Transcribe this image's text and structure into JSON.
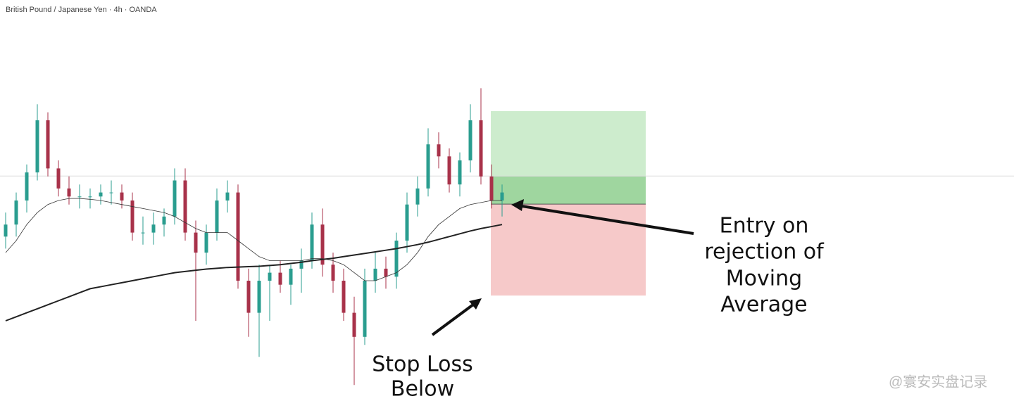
{
  "chart_data": {
    "type": "candlestick",
    "title": "British Pound / Japanese Yen · 4h · OANDA",
    "ylim": [
      0,
      100
    ],
    "up_color": "#2a9d8f",
    "down_color": "#a8324a",
    "open": [
      41,
      44,
      50,
      57,
      70,
      58,
      53,
      51,
      51,
      51,
      52,
      52,
      50,
      42,
      42,
      44,
      46,
      55,
      42,
      37,
      42,
      50,
      52,
      30,
      22,
      30,
      32,
      29,
      33,
      35,
      44,
      34,
      30,
      22,
      16,
      30,
      33,
      31,
      40,
      49,
      53,
      64,
      61,
      54,
      60,
      70,
      56,
      50
    ],
    "high": [
      47,
      52,
      59,
      74,
      72,
      60,
      56,
      54,
      53,
      54,
      55,
      54,
      52,
      46,
      47,
      48,
      58,
      58,
      45,
      44,
      53,
      55,
      54,
      33,
      34,
      34,
      35,
      34,
      38,
      47,
      48,
      37,
      33,
      26,
      33,
      37,
      36,
      42,
      52,
      56,
      68,
      67,
      63,
      62,
      74,
      78,
      59,
      54
    ],
    "low": [
      38,
      41,
      47,
      55,
      56,
      51,
      49,
      48,
      48,
      49,
      49,
      48,
      40,
      39,
      39,
      41,
      44,
      40,
      20,
      34,
      40,
      47,
      28,
      16,
      11,
      20,
      27,
      24,
      27,
      33,
      31,
      27,
      20,
      4,
      14,
      27,
      28,
      28,
      37,
      46,
      51,
      58,
      52,
      51,
      57,
      54,
      48,
      46
    ],
    "close": [
      44,
      50,
      57,
      70,
      58,
      53,
      51,
      51,
      51,
      52,
      52,
      50,
      42,
      42,
      44,
      46,
      55,
      42,
      37,
      42,
      50,
      52,
      30,
      22,
      30,
      32,
      29,
      33,
      35,
      44,
      34,
      30,
      22,
      16,
      30,
      33,
      31,
      40,
      49,
      53,
      64,
      61,
      54,
      60,
      70,
      56,
      50,
      52
    ],
    "series": [
      {
        "name": null,
        "color": "#222",
        "width": 2,
        "values": [
          20,
          21,
          22,
          23,
          24,
          25,
          26,
          27,
          28,
          28.5,
          29,
          29.5,
          30,
          30.5,
          31,
          31.5,
          32,
          32.3,
          32.6,
          32.9,
          33.1,
          33.3,
          33.4,
          33.5,
          33.6,
          33.8,
          34,
          34.3,
          34.6,
          35,
          35.3,
          35.6,
          36,
          36.4,
          36.8,
          37.2,
          37.6,
          38,
          38.5,
          39,
          39.6,
          40.3,
          41,
          41.7,
          42.4,
          43,
          43.5,
          44
        ]
      },
      {
        "name": null,
        "color": "#333",
        "width": 0.8,
        "values": [
          37,
          40,
          44,
          47,
          49,
          50,
          50.5,
          50.5,
          50.3,
          50,
          49.5,
          49,
          48.5,
          48,
          47.5,
          47,
          46,
          44.5,
          43,
          42,
          42,
          42,
          40,
          38,
          36,
          35,
          35,
          35,
          35,
          35.5,
          35.5,
          35,
          34,
          32,
          30,
          30,
          31,
          32,
          34,
          37,
          41,
          44,
          46,
          48,
          49,
          49.5,
          50,
          50
        ]
      }
    ],
    "price_line": 56.1,
    "position": {
      "target": 72.3,
      "entry": 49.1,
      "stop": 26.3
    },
    "annotations": [
      "Entry on",
      "rejection of",
      "Moving",
      "Average",
      "Stop Loss",
      "Below"
    ],
    "watermark": "@寰安实盘记录"
  }
}
